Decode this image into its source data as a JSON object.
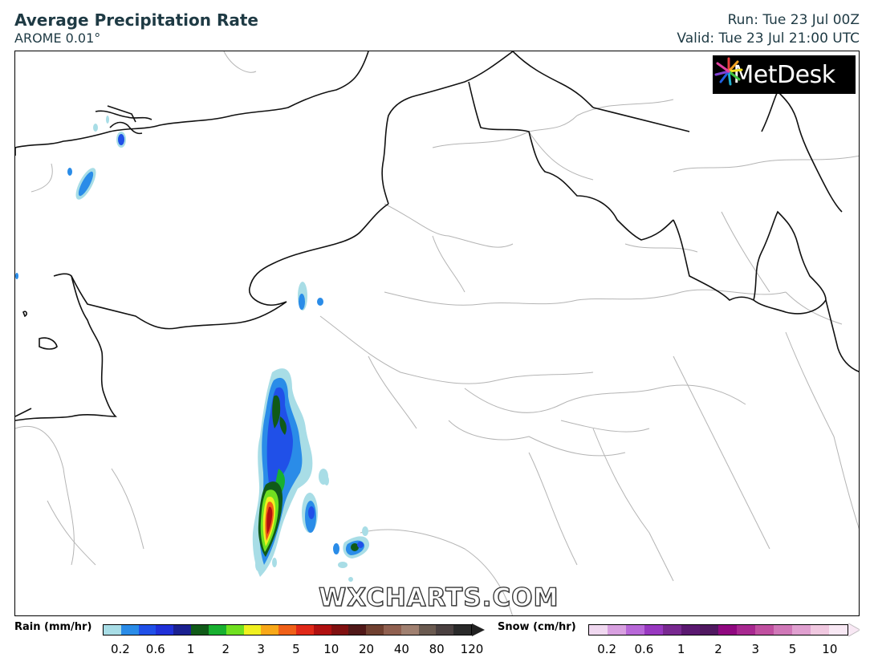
{
  "header": {
    "title": "Average Precipitation Rate",
    "model": "AROME 0.01°",
    "run": "Run: Tue 23 Jul 00Z",
    "valid": "Valid: Tue 23 Jul 21:00 UTC"
  },
  "logo": {
    "text": "MetDesk",
    "icon": "starburst-logo-icon"
  },
  "watermark": "WXCHARTS.COM",
  "legend": {
    "rain": {
      "label": "Rain (mm/hr)",
      "ticks": [
        "0.2",
        "0.6",
        "1",
        "2",
        "3",
        "5",
        "10",
        "20",
        "40",
        "80",
        "120"
      ],
      "colors": [
        "#a8dde6",
        "#2a8ce8",
        "#2050e8",
        "#2030d8",
        "#1a2090",
        "#105a18",
        "#18b030",
        "#70e020",
        "#f0f020",
        "#f8a818",
        "#f06018",
        "#e02818",
        "#b01010",
        "#801010",
        "#501818",
        "#704030",
        "#906050",
        "#a08070",
        "#6a5a50",
        "#4a4040",
        "#2a2a2a"
      ]
    },
    "snow": {
      "label": "Snow (cm/hr)",
      "ticks": [
        "0.2",
        "0.6",
        "1",
        "2",
        "3",
        "5",
        "10"
      ],
      "colors": [
        "#f0d8f0",
        "#d8a0e0",
        "#b868d8",
        "#9838c0",
        "#782890",
        "#5a1870",
        "#501860",
        "#900880",
        "#a82890",
        "#c050a0",
        "#d078b8",
        "#e0a0d0",
        "#f0c8e0",
        "#f8e8f4"
      ]
    }
  }
}
